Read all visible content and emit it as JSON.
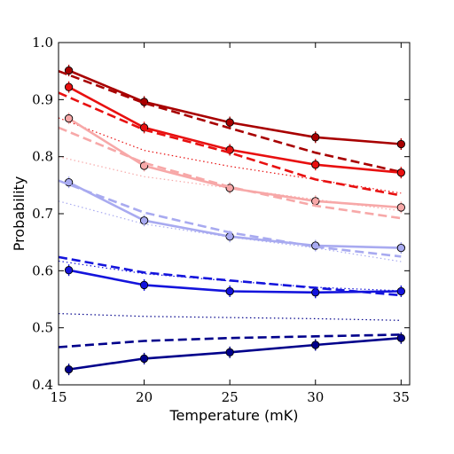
{
  "chart_data": {
    "type": "line",
    "title": "",
    "xlabel": "Temperature (mK)",
    "ylabel": "Probability",
    "xlim": [
      15,
      35.5
    ],
    "ylim": [
      0.4,
      1.0
    ],
    "xticks": [
      15,
      20,
      25,
      30,
      35
    ],
    "xtick_labels": [
      "15",
      "20",
      "25",
      "30",
      "35"
    ],
    "yticks": [
      0.4,
      0.5,
      0.6,
      0.7,
      0.8,
      0.9,
      1.0
    ],
    "ytick_labels": [
      "0.4",
      "0.5",
      "0.6",
      "0.7",
      "0.8",
      "0.9",
      "1.0"
    ],
    "grid": false,
    "legend": "none",
    "series": [
      {
        "style": "solid-markers",
        "color": "#a80000",
        "x": [
          15.6,
          20,
          25,
          30,
          35
        ],
        "y": [
          0.951,
          0.896,
          0.86,
          0.834,
          0.822
        ]
      },
      {
        "style": "dashed",
        "color": "#a80000",
        "x": [
          15,
          20,
          25,
          30,
          35
        ],
        "y": [
          0.95,
          0.894,
          0.85,
          0.807,
          0.773
        ]
      },
      {
        "style": "solid-markers",
        "color": "#e81010",
        "x": [
          15.6,
          20,
          25,
          30,
          35
        ],
        "y": [
          0.922,
          0.851,
          0.812,
          0.786,
          0.772
        ]
      },
      {
        "style": "dashed",
        "color": "#e81010",
        "x": [
          15,
          20,
          25,
          30,
          35
        ],
        "y": [
          0.912,
          0.847,
          0.807,
          0.76,
          0.732
        ]
      },
      {
        "style": "dotted",
        "color": "#e81010",
        "x": [
          15,
          20,
          25,
          30,
          35
        ],
        "y": [
          0.868,
          0.811,
          0.783,
          0.76,
          0.736
        ]
      },
      {
        "style": "solid-markers",
        "color": "#f7a8a8",
        "x": [
          15.6,
          20,
          25,
          30,
          35
        ],
        "y": [
          0.867,
          0.784,
          0.745,
          0.722,
          0.711
        ]
      },
      {
        "style": "dashed",
        "color": "#f7a8a8",
        "x": [
          15,
          20,
          25,
          30,
          35
        ],
        "y": [
          0.851,
          0.789,
          0.747,
          0.714,
          0.692
        ]
      },
      {
        "style": "dotted",
        "color": "#f7a8a8",
        "x": [
          15,
          20,
          25,
          30,
          35
        ],
        "y": [
          0.8,
          0.765,
          0.745,
          0.725,
          0.705
        ]
      },
      {
        "style": "solid-markers",
        "color": "#a8aaf0",
        "x": [
          15.6,
          20,
          25,
          30,
          35
        ],
        "y": [
          0.755,
          0.688,
          0.66,
          0.644,
          0.64
        ]
      },
      {
        "style": "dashed",
        "color": "#a8aaf0",
        "x": [
          15,
          20,
          25,
          30,
          35
        ],
        "y": [
          0.758,
          0.702,
          0.667,
          0.642,
          0.625
        ]
      },
      {
        "style": "dotted",
        "color": "#a8aaf0",
        "x": [
          15,
          20,
          25,
          30,
          35
        ],
        "y": [
          0.722,
          0.682,
          0.659,
          0.64,
          0.616
        ]
      },
      {
        "style": "solid-markers",
        "color": "#1414dc",
        "x": [
          15.6,
          20,
          25,
          30,
          35
        ],
        "y": [
          0.601,
          0.575,
          0.564,
          0.562,
          0.564
        ]
      },
      {
        "style": "dashed",
        "color": "#1414dc",
        "x": [
          15,
          20,
          25,
          30,
          35
        ],
        "y": [
          0.624,
          0.597,
          0.583,
          0.57,
          0.557
        ]
      },
      {
        "style": "dotted",
        "color": "#1414dc",
        "x": [
          15,
          20,
          25,
          30,
          35
        ],
        "y": [
          0.617,
          0.595,
          0.582,
          0.571,
          0.565
        ]
      },
      {
        "style": "dotted",
        "color": "#00008b",
        "x": [
          15,
          20,
          25,
          30,
          35
        ],
        "y": [
          0.525,
          0.52,
          0.518,
          0.516,
          0.513
        ]
      },
      {
        "style": "solid-markers",
        "color": "#00008b",
        "x": [
          15.6,
          20,
          25,
          30,
          35
        ],
        "y": [
          0.427,
          0.446,
          0.457,
          0.47,
          0.482
        ]
      },
      {
        "style": "dashed",
        "color": "#00008b",
        "x": [
          15,
          20,
          25,
          30,
          35
        ],
        "y": [
          0.466,
          0.477,
          0.482,
          0.485,
          0.488
        ]
      }
    ]
  }
}
